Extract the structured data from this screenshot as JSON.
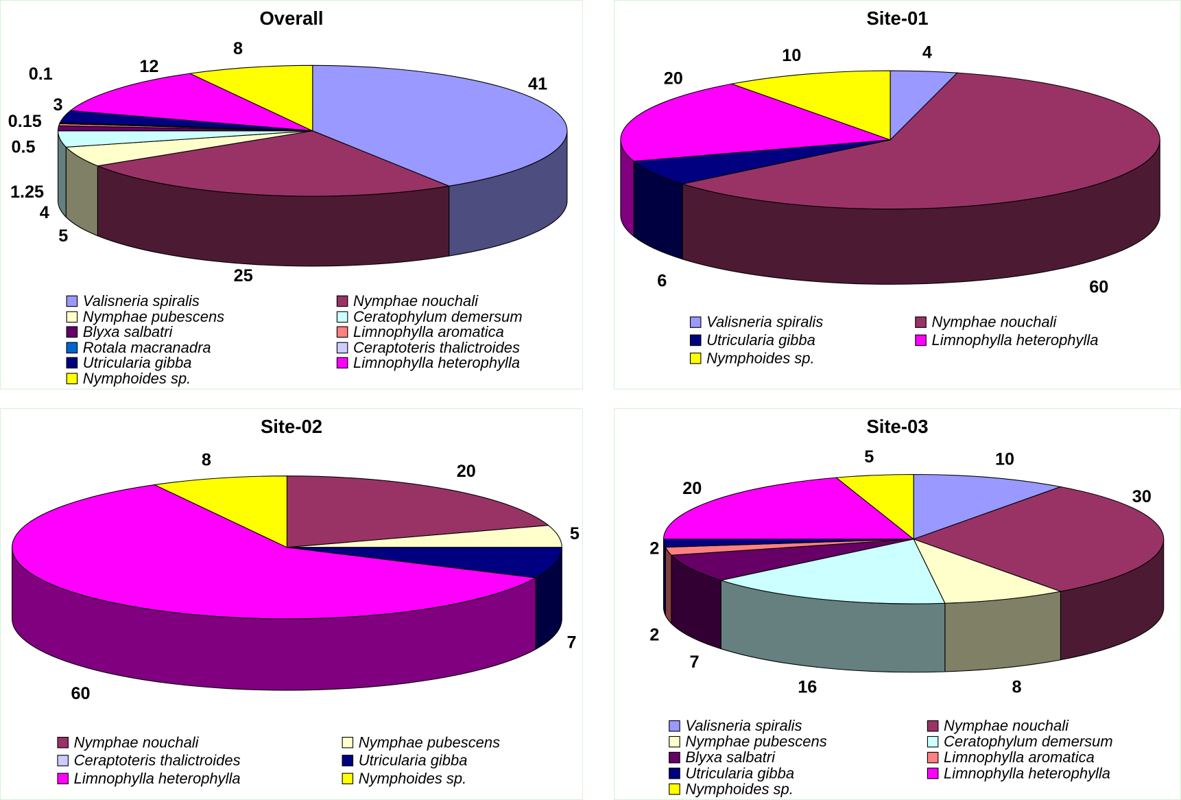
{
  "species_colors": {
    "Valisneria spiralis": "#9999FF",
    "Nymphae nouchali": "#993366",
    "Nymphae pubescens": "#FFFFCC",
    "Ceratophylum demersum": "#CCFFFF",
    "Blyxa salbatri": "#660066",
    "Limnophylla aromatica": "#FF8080",
    "Rotala macranadra": "#0066CC",
    "Ceraptoteris thalictroides": "#CCCCFF",
    "Utricularia gibba": "#000080",
    "Limnophylla heterophylla": "#FF00FF",
    "Nymphoides sp.": "#FFFF00"
  },
  "chart_data": [
    {
      "type": "pie",
      "style": "3d",
      "title": "Overall",
      "legend_placement": "bottom",
      "categories": [
        "Valisneria spiralis",
        "Nymphae nouchali",
        "Nymphae pubescens",
        "Ceratophylum demersum",
        "Blyxa salbatri",
        "Limnophylla aromatica",
        "Rotala macranadra",
        "Ceraptoteris thalictroides",
        "Utricularia gibba",
        "Limnophylla heterophylla",
        "Nymphoides sp."
      ],
      "values": [
        41,
        25,
        5,
        4,
        1.25,
        0.5,
        0.15,
        0.1,
        3,
        12,
        8
      ],
      "data_labels": [
        "41",
        "25",
        "5",
        "4",
        "1.25",
        "0.5",
        "0.15",
        "0.1",
        "3",
        "12",
        "8"
      ]
    },
    {
      "type": "pie",
      "style": "3d",
      "title": "Site-01",
      "legend_placement": "bottom",
      "categories": [
        "Valisneria spiralis",
        "Nymphae nouchali",
        "Utricularia gibba",
        "Limnophylla heterophylla",
        "Nymphoides sp."
      ],
      "values": [
        4,
        60,
        6,
        20,
        10
      ],
      "data_labels": [
        "4",
        "60",
        "6",
        "20",
        "10"
      ]
    },
    {
      "type": "pie",
      "style": "3d",
      "title": "Site-02",
      "legend_placement": "bottom",
      "categories": [
        "Nymphae nouchali",
        "Nymphae pubescens",
        "Ceraptoteris thalictroides",
        "Utricularia gibba",
        "Limnophylla heterophylla",
        "Nymphoides sp."
      ],
      "values": [
        20,
        5,
        0,
        7,
        60,
        8
      ],
      "data_labels": [
        "20",
        "5",
        "",
        "7",
        "60",
        "8"
      ]
    },
    {
      "type": "pie",
      "style": "3d",
      "title": "Site-03",
      "legend_placement": "bottom",
      "categories": [
        "Valisneria spiralis",
        "Nymphae nouchali",
        "Nymphae pubescens",
        "Ceratophylum demersum",
        "Blyxa salbatri",
        "Limnophylla aromatica",
        "Utricularia gibba",
        "Limnophylla heterophylla",
        "Nymphoides sp."
      ],
      "values": [
        10,
        30,
        8,
        16,
        7,
        2,
        2,
        20,
        5
      ],
      "data_labels": [
        "10",
        "30",
        "8",
        "16",
        "7",
        "2",
        "2",
        "20",
        "5"
      ]
    }
  ]
}
